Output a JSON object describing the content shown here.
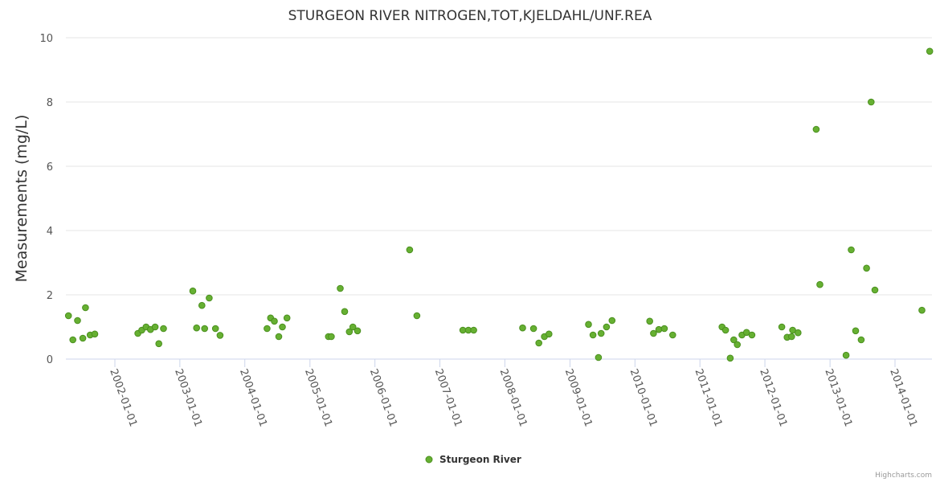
{
  "chart_data": {
    "type": "scatter",
    "title": "STURGEON RIVER NITROGEN,TOT,KJELDAHL/UNF.REA",
    "ylabel": "Measurements (mg/L)",
    "xlabel": "",
    "ylim": [
      0,
      10
    ],
    "y_ticks": [
      "0",
      "2",
      "4",
      "6",
      "8",
      "10"
    ],
    "x_ticks": [
      "2002-01-01",
      "2003-01-01",
      "2004-01-01",
      "2005-01-01",
      "2006-01-01",
      "2007-01-01",
      "2008-01-01",
      "2009-01-01",
      "2010-01-01",
      "2011-01-01",
      "2012-01-01",
      "2013-01-01",
      "2014-01-01"
    ],
    "grid": "horizontal",
    "legend_position": "bottom-center",
    "color": "#66b032",
    "series": [
      {
        "name": "Sturgeon River",
        "points": [
          [
            "2001-04-15",
            1.35
          ],
          [
            "2001-05-10",
            0.6
          ],
          [
            "2001-06-05",
            1.2
          ],
          [
            "2001-07-05",
            0.65
          ],
          [
            "2001-07-20",
            1.6
          ],
          [
            "2001-08-15",
            0.75
          ],
          [
            "2001-09-10",
            0.78
          ],
          [
            "2002-05-10",
            0.8
          ],
          [
            "2002-06-01",
            0.9
          ],
          [
            "2002-06-25",
            1.0
          ],
          [
            "2002-07-20",
            0.92
          ],
          [
            "2002-08-15",
            1.0
          ],
          [
            "2002-09-05",
            0.48
          ],
          [
            "2002-10-01",
            0.95
          ],
          [
            "2003-03-15",
            2.12
          ],
          [
            "2003-04-05",
            0.97
          ],
          [
            "2003-05-05",
            1.67
          ],
          [
            "2003-05-20",
            0.95
          ],
          [
            "2003-06-15",
            1.9
          ],
          [
            "2003-07-20",
            0.95
          ],
          [
            "2003-08-15",
            0.74
          ],
          [
            "2004-05-05",
            0.95
          ],
          [
            "2004-05-25",
            1.28
          ],
          [
            "2004-06-15",
            1.18
          ],
          [
            "2004-07-10",
            0.7
          ],
          [
            "2004-07-30",
            1.0
          ],
          [
            "2004-08-25",
            1.28
          ],
          [
            "2005-04-15",
            0.7
          ],
          [
            "2005-05-01",
            0.7
          ],
          [
            "2005-06-20",
            2.2
          ],
          [
            "2005-07-15",
            1.48
          ],
          [
            "2005-08-10",
            0.85
          ],
          [
            "2005-08-30",
            1.0
          ],
          [
            "2005-09-25",
            0.88
          ],
          [
            "2006-07-15",
            3.4
          ],
          [
            "2006-08-25",
            1.35
          ],
          [
            "2007-05-10",
            0.9
          ],
          [
            "2007-06-10",
            0.9
          ],
          [
            "2007-07-10",
            0.9
          ],
          [
            "2008-04-10",
            0.97
          ],
          [
            "2008-06-10",
            0.95
          ],
          [
            "2008-07-10",
            0.5
          ],
          [
            "2008-08-10",
            0.7
          ],
          [
            "2008-09-05",
            0.78
          ],
          [
            "2009-04-15",
            1.08
          ],
          [
            "2009-05-10",
            0.75
          ],
          [
            "2009-06-10",
            0.05
          ],
          [
            "2009-06-25",
            0.8
          ],
          [
            "2009-07-25",
            1.0
          ],
          [
            "2009-08-25",
            1.2
          ],
          [
            "2010-03-25",
            1.18
          ],
          [
            "2010-04-15",
            0.8
          ],
          [
            "2010-05-15",
            0.92
          ],
          [
            "2010-06-15",
            0.95
          ],
          [
            "2010-08-01",
            0.75
          ],
          [
            "2011-05-05",
            1.0
          ],
          [
            "2011-05-25",
            0.9
          ],
          [
            "2011-06-20",
            0.03
          ],
          [
            "2011-07-10",
            0.6
          ],
          [
            "2011-07-30",
            0.45
          ],
          [
            "2011-08-25",
            0.75
          ],
          [
            "2011-09-20",
            0.83
          ],
          [
            "2011-10-20",
            0.75
          ],
          [
            "2012-04-05",
            1.0
          ],
          [
            "2012-05-05",
            0.68
          ],
          [
            "2012-05-30",
            0.7
          ],
          [
            "2012-06-05",
            0.9
          ],
          [
            "2012-07-05",
            0.82
          ],
          [
            "2012-10-15",
            7.15
          ],
          [
            "2012-11-05",
            2.32
          ],
          [
            "2013-04-01",
            0.12
          ],
          [
            "2013-04-30",
            3.4
          ],
          [
            "2013-05-25",
            0.88
          ],
          [
            "2013-06-25",
            0.6
          ],
          [
            "2013-07-25",
            2.83
          ],
          [
            "2013-08-20",
            8.0
          ],
          [
            "2013-09-10",
            2.15
          ],
          [
            "2014-06-01",
            1.52
          ],
          [
            "2014-07-15",
            9.58
          ]
        ]
      }
    ]
  },
  "credits": "Highcharts.com"
}
